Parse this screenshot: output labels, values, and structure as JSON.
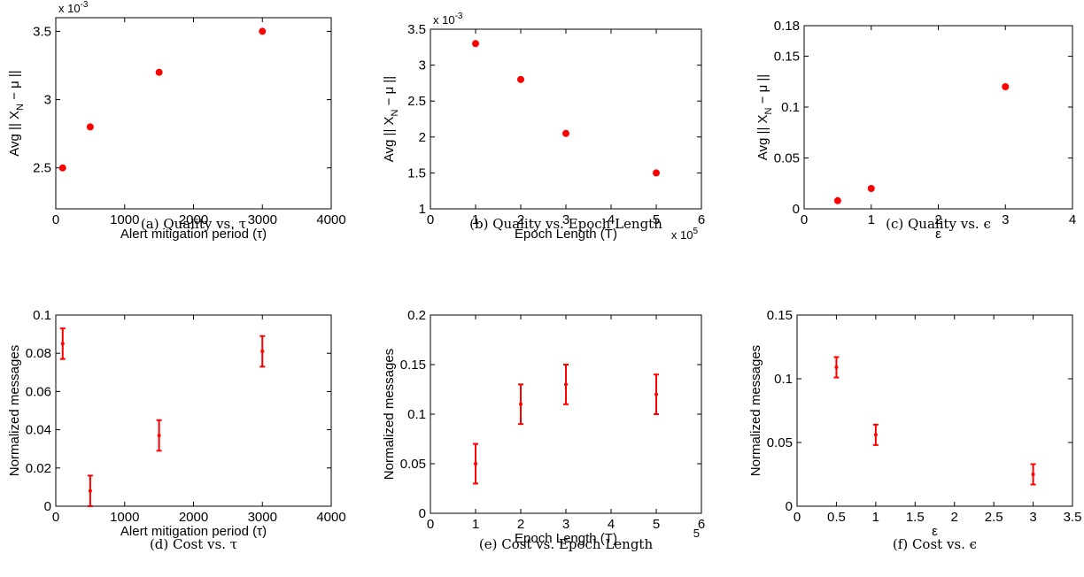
{
  "chart_data": [
    {
      "id": "a",
      "type": "scatter",
      "caption": "(a)  Quality vs. τ",
      "ylabel": "Avg || X_N − μ ||",
      "xlabel": "Alert mitigation period (τ)",
      "y_exponent": "x 10^-3",
      "xlim": [
        0,
        4000
      ],
      "ylim": [
        2.2,
        3.6
      ],
      "xticks": [
        0,
        1000,
        2000,
        3000,
        4000
      ],
      "xtick_labels": [
        "0",
        "1000",
        "2000",
        "3000",
        "4000"
      ],
      "yticks": [
        2.5,
        3,
        3.5
      ],
      "ytick_labels": [
        "2.5",
        "3",
        "3.5"
      ],
      "grid": false,
      "series": [
        {
          "x": [
            100,
            500,
            1500,
            3000
          ],
          "y": [
            2.5,
            2.8,
            3.2,
            3.5
          ]
        }
      ]
    },
    {
      "id": "b",
      "type": "scatter",
      "caption": "(b)  Quality vs. Epoch Length",
      "ylabel": "Avg || X_N − μ ||",
      "xlabel": "Epoch Length (T)",
      "y_exponent": "x 10^-3",
      "x_exponent": "x 10^5",
      "xlim": [
        0,
        6
      ],
      "ylim": [
        1,
        3.5
      ],
      "xticks": [
        0,
        1,
        2,
        3,
        4,
        5,
        6
      ],
      "xtick_labels": [
        "0",
        "1",
        "2",
        "3",
        "4",
        "5",
        "6"
      ],
      "yticks": [
        1,
        1.5,
        2,
        2.5,
        3,
        3.5
      ],
      "ytick_labels": [
        "1",
        "1.5",
        "2",
        "2.5",
        "3",
        "3.5"
      ],
      "grid": false,
      "series": [
        {
          "x": [
            1,
            2,
            3,
            5
          ],
          "y": [
            3.3,
            2.8,
            2.05,
            1.5
          ]
        }
      ]
    },
    {
      "id": "c",
      "type": "scatter",
      "caption": "(c)  Quality vs. ϵ",
      "ylabel": "Avg || X_N − μ ||",
      "xlabel": "ε",
      "xlim": [
        0,
        4
      ],
      "ylim": [
        0,
        0.18
      ],
      "xticks": [
        0,
        1,
        2,
        3,
        4
      ],
      "xtick_labels": [
        "0",
        "1",
        "2",
        "3",
        "4"
      ],
      "yticks": [
        0,
        0.05,
        0.1,
        0.15,
        0.18
      ],
      "ytick_labels": [
        "0",
        "0.05",
        "0.1",
        "0.15",
        "0.18"
      ],
      "grid": false,
      "series": [
        {
          "x": [
            0.5,
            1,
            3
          ],
          "y": [
            0.008,
            0.02,
            0.12
          ]
        }
      ]
    },
    {
      "id": "d",
      "type": "scatter",
      "caption": "(d)  Cost vs. τ",
      "ylabel": "Normalized messages",
      "xlabel": "Alert mitigation period (τ)",
      "xlim": [
        0,
        4000
      ],
      "ylim": [
        0,
        0.1
      ],
      "xticks": [
        0,
        1000,
        2000,
        3000,
        4000
      ],
      "xtick_labels": [
        "0",
        "1000",
        "2000",
        "3000",
        "4000"
      ],
      "yticks": [
        0,
        0.02,
        0.04,
        0.06,
        0.08,
        0.1
      ],
      "ytick_labels": [
        "0",
        "0.02",
        "0.04",
        "0.06",
        "0.08",
        "0.1"
      ],
      "grid": false,
      "series": [
        {
          "x": [
            100,
            500,
            1500,
            3000
          ],
          "y": [
            0.085,
            0.008,
            0.037,
            0.081
          ],
          "y_low": [
            0.077,
            0,
            0.029,
            0.073
          ],
          "y_high": [
            0.093,
            0.016,
            0.045,
            0.089
          ]
        }
      ]
    },
    {
      "id": "e",
      "type": "scatter",
      "caption": "(e)  Cost vs. Epoch Length",
      "ylabel": "Normalized messages",
      "xlabel": "Epoch Length (T)",
      "x_exponent": "5",
      "xlim": [
        0,
        6
      ],
      "ylim": [
        0,
        0.2
      ],
      "xticks": [
        0,
        1,
        2,
        3,
        4,
        5,
        6
      ],
      "xtick_labels": [
        "0",
        "1",
        "2",
        "3",
        "4",
        "5",
        "6"
      ],
      "yticks": [
        0,
        0.05,
        0.1,
        0.15,
        0.2
      ],
      "ytick_labels": [
        "0",
        "0.05",
        "0.1",
        "0.15",
        "0.2"
      ],
      "grid": false,
      "series": [
        {
          "x": [
            1,
            2,
            3,
            5
          ],
          "y": [
            0.05,
            0.11,
            0.13,
            0.12
          ],
          "y_low": [
            0.03,
            0.09,
            0.11,
            0.1
          ],
          "y_high": [
            0.07,
            0.13,
            0.15,
            0.14
          ]
        }
      ]
    },
    {
      "id": "f",
      "type": "scatter",
      "caption": "(f)  Cost vs. ϵ",
      "ylabel": "Normalized messages",
      "xlabel": "ε",
      "xlim": [
        0,
        3.5
      ],
      "ylim": [
        0,
        0.15
      ],
      "xticks": [
        0,
        0.5,
        1,
        1.5,
        2,
        2.5,
        3,
        3.5
      ],
      "xtick_labels": [
        "0",
        "0.5",
        "1",
        "1.5",
        "2",
        "2.5",
        "3",
        "3.5"
      ],
      "yticks": [
        0,
        0.05,
        0.1,
        0.15
      ],
      "ytick_labels": [
        "0",
        "0.05",
        "0.1",
        "0.15"
      ],
      "grid": false,
      "series": [
        {
          "x": [
            0.5,
            1,
            3
          ],
          "y": [
            0.109,
            0.056,
            0.025
          ],
          "y_low": [
            0.101,
            0.048,
            0.017
          ],
          "y_high": [
            0.117,
            0.064,
            0.033
          ]
        }
      ]
    }
  ]
}
